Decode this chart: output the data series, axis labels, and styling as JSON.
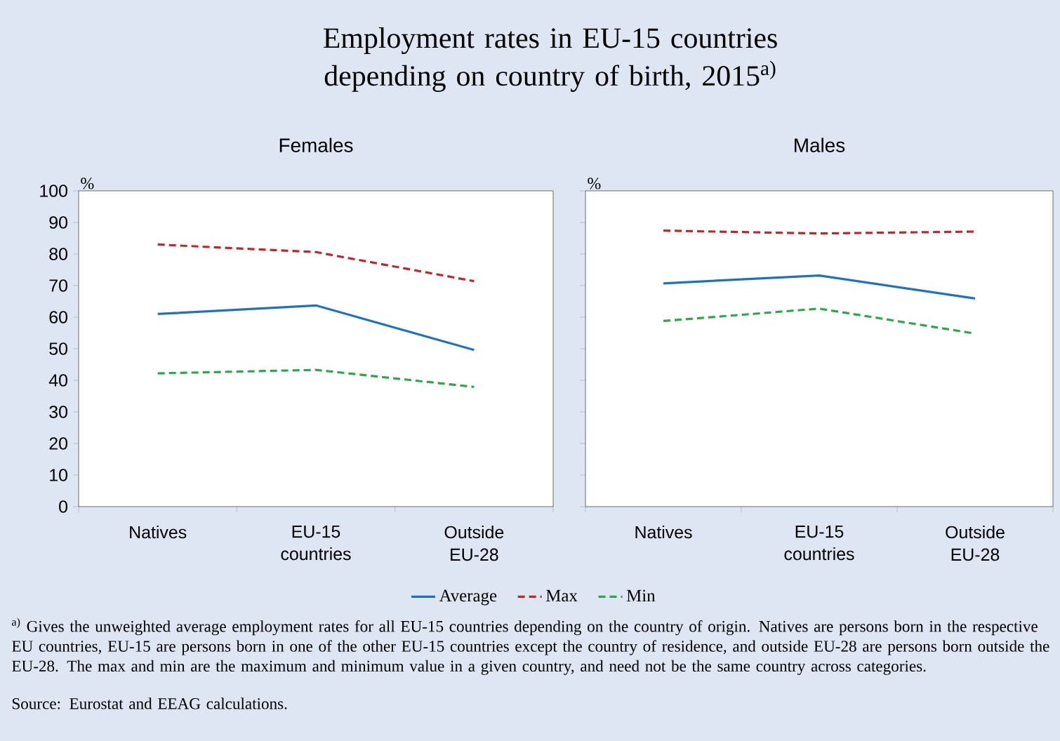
{
  "chart_data": [
    {
      "type": "other",
      "title": "Employment rates in EU-15 countries depending on country of birth, 2015$^{a)}$",
      "annotations": [
        "$^{a)}$ Gives the unweighted average employment rates for all EU-15 countries depending on the country of origin. Natives are persons born in the respective EU countries, EU-15 are persons born in one of the other EU-15 countries except the country of residence, and outside EU-28 are persons born outside the EU-28. The max and min are the maximum and minimum value in a given country, and need not be the same country across categories.",
        "Source: Eurostat and EEAG calculations."
      ]
    },
    {
      "type": "line",
      "title": "Females",
      "ylabel": "%",
      "categories": [
        "Natives",
        "EU-15 countries",
        "Outside EU-28"
      ],
      "ylim": [
        0,
        100
      ],
      "yticks": [
        0,
        10,
        20,
        30,
        40,
        50,
        60,
        70,
        80,
        90,
        100
      ],
      "marker": "none",
      "legend": "bottom",
      "series": [
        {
          "name": "Average",
          "color": "#1f72bf",
          "line_style": "solid",
          "values": [
            61,
            63.7,
            49.6
          ]
        },
        {
          "name": "Max",
          "color": "#c0262d",
          "line_style": "dashed",
          "values": [
            83,
            80.6,
            71.4
          ]
        },
        {
          "name": "Min",
          "color": "#2ca84a",
          "line_style": "dashed",
          "values": [
            42.2,
            43.3,
            37.9
          ]
        }
      ]
    },
    {
      "type": "line",
      "title": "Males",
      "ylabel": "%",
      "categories": [
        "Natives",
        "EU-15 countries",
        "Outside EU-28"
      ],
      "ylim": [
        0,
        100
      ],
      "yticks": [
        0,
        10,
        20,
        30,
        40,
        50,
        60,
        70,
        80,
        90,
        100
      ],
      "tick_labels": "x",
      "marker": "none",
      "series": [
        {
          "color": "#1f72bf",
          "line_style": "solid",
          "values": [
            70.7,
            73.2,
            65.9
          ]
        },
        {
          "color": "#c0262d",
          "line_style": "dashed",
          "values": [
            87.4,
            86.5,
            87.1
          ]
        },
        {
          "color": "#2ca84a",
          "line_style": "dashed",
          "values": [
            58.8,
            62.7,
            54.8
          ]
        }
      ]
    }
  ]
}
